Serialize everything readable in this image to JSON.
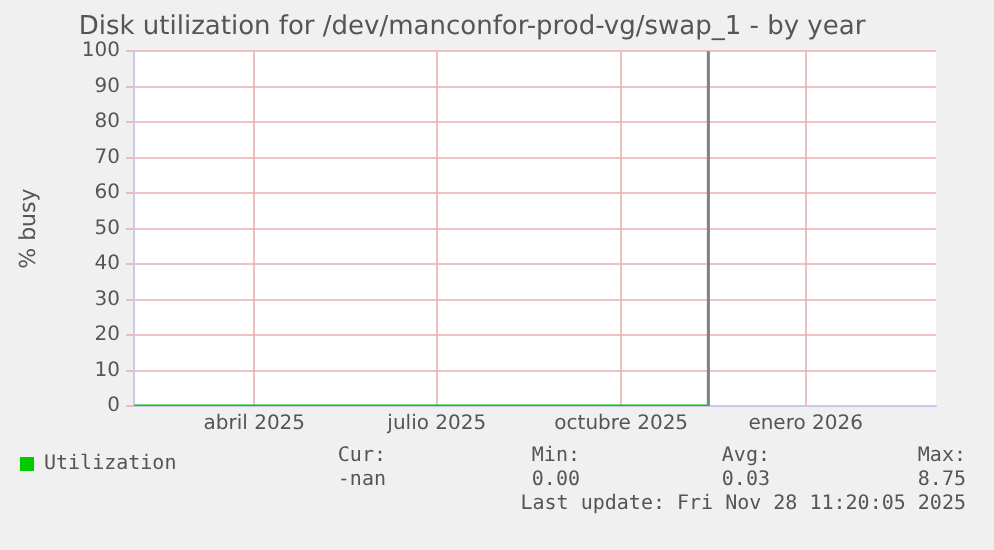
{
  "chart_data": {
    "type": "line",
    "title": "Disk utilization for /dev/manconfor-prod-vg/swap_1 - by year",
    "ylabel": "% busy",
    "x": [
      "2025-02-15",
      "2025-03-15",
      "2025-04-15",
      "2025-05-15",
      "2025-06-15",
      "2025-07-15",
      "2025-08-15",
      "2025-09-15",
      "2025-10-15",
      "2025-11-15",
      "2025-11-28"
    ],
    "series": [
      {
        "name": "Utilization",
        "color": "#00cc00",
        "values": [
          0,
          0,
          0,
          0,
          0,
          0,
          0,
          0,
          0,
          0,
          0
        ]
      }
    ],
    "xlim": [
      "2025-02-15",
      "2026-03-22"
    ],
    "xticks": [
      {
        "value": "2025-04-16",
        "label": "abril 2025"
      },
      {
        "value": "2025-07-16",
        "label": "julio 2025"
      },
      {
        "value": "2025-10-16",
        "label": "octubre 2025"
      },
      {
        "value": "2026-01-16",
        "label": "enero 2026"
      }
    ],
    "ylim": [
      0,
      100
    ],
    "yticks": [
      0,
      10,
      20,
      30,
      40,
      50,
      60,
      70,
      80,
      90,
      100
    ],
    "grid": true,
    "legend": "bottom",
    "marker": "none",
    "line_style": "solid",
    "ref_lines": [
      {
        "axis": "x",
        "value": "2025-11-28T11:20",
        "color": "#808080"
      }
    ],
    "annotations": [
      "Cur:",
      "Min:",
      "Avg:",
      "Max:",
      "-nan",
      "0.00",
      "0.03",
      "8.75",
      "Last update: Fri Nov 28 11:20:05 2025"
    ]
  }
}
